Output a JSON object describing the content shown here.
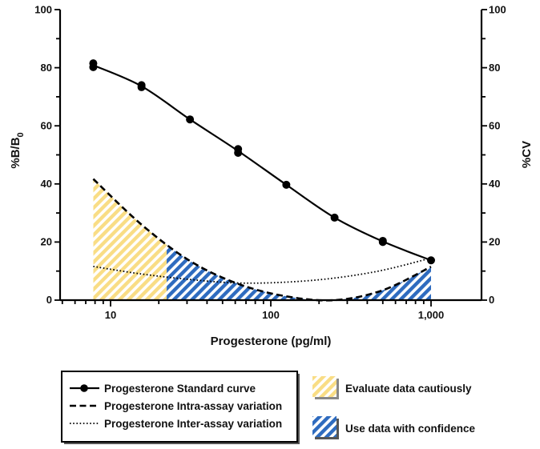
{
  "chart_data": {
    "type": "line",
    "xlabel": "Progesterone (pg/ml)",
    "ylabel_left": "%B/B",
    "ylabel_left_sub": "0",
    "ylabel_right": "%CV",
    "x_scale": "log",
    "xlim": [
      5,
      1300
    ],
    "ylim": [
      0,
      100
    ],
    "x_tick_labels": [
      {
        "value": 10,
        "label": "10"
      },
      {
        "value": 100,
        "label": "100"
      },
      {
        "value": 1000,
        "label": "1,000"
      }
    ],
    "y_ticks": [
      {
        "value": 0,
        "label": "0"
      },
      {
        "value": 20,
        "label": "20"
      },
      {
        "value": 40,
        "label": "40"
      },
      {
        "value": 60,
        "label": "60"
      },
      {
        "value": 80,
        "label": "80"
      },
      {
        "value": 100,
        "label": "100"
      }
    ],
    "series": [
      {
        "name": "Progesterone Standard curve",
        "style": "solid-with-markers",
        "x": [
          7.8,
          7.8,
          15.6,
          15.6,
          31.3,
          62.5,
          62.5,
          125,
          250,
          500,
          500,
          1000
        ],
        "y": [
          81.5,
          80.2,
          74.0,
          73.3,
          62.2,
          52.0,
          50.7,
          39.7,
          28.4,
          20.4,
          20.0,
          13.7
        ]
      },
      {
        "name": "Progesterone Intra-assay variation",
        "style": "dashed",
        "x": [
          7.8,
          15.6,
          31.3,
          62.5,
          125,
          250,
          500,
          1000
        ],
        "y": [
          41.7,
          26.0,
          13.5,
          5.6,
          1.3,
          0.0,
          3.4,
          11.5
        ]
      },
      {
        "name": "Progesterone Inter-assay variation",
        "style": "dotted",
        "x": [
          7.8,
          15.6,
          31.3,
          62.5,
          125,
          250,
          500,
          1000
        ],
        "y": [
          11.6,
          9.0,
          7.1,
          5.9,
          6.2,
          7.6,
          10.3,
          14.5
        ]
      }
    ],
    "regions": [
      {
        "name": "Evaluate data cautiously",
        "x_from": 7.8,
        "x_to": 22.4,
        "color": "#f9dd85"
      },
      {
        "name": "Use data with confidence",
        "x_from": 22.4,
        "x_to": 1000,
        "color": "#2e6bbf"
      }
    ],
    "legend": {
      "placement": "bottom",
      "lines": [
        {
          "label": "Progesterone Standard curve",
          "style": "solid-with-markers"
        },
        {
          "label": "Progesterone Intra-assay variation",
          "style": "dashed"
        },
        {
          "label": "Progesterone Inter-assay variation",
          "style": "dotted"
        }
      ],
      "swatches": [
        {
          "label": "Evaluate data cautiously",
          "color": "#f9dd85"
        },
        {
          "label": "Use data with confidence",
          "color": "#2e6bbf"
        }
      ]
    }
  }
}
